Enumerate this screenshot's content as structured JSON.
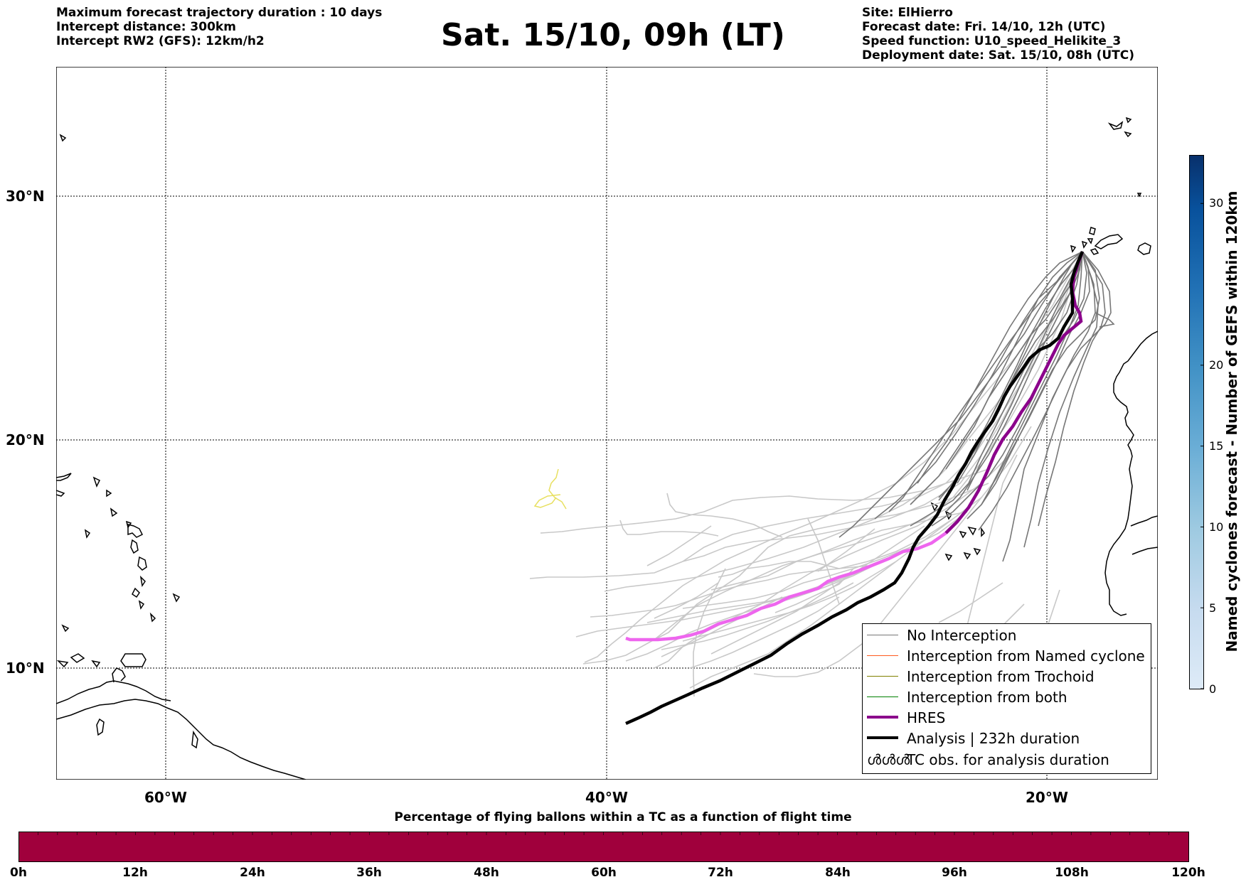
{
  "header": {
    "left_lines": [
      "Maximum forecast trajectory duration : 10 days",
      "Intercept distance: 300km",
      "Intercept RW2 (GFS):  12km/h2"
    ],
    "title": "Sat. 15/10, 09h (LT)",
    "right_lines": [
      "Site: ElHierro",
      "Forecast date: Fri. 14/10, 12h (UTC)",
      "Speed function: U10_speed_Helikite_3",
      "Deployment date: Sat. 15/10, 08h (UTC)"
    ]
  },
  "map": {
    "lat_labels": [
      "30°N",
      "20°N",
      "10°N"
    ],
    "lon_labels": [
      "60°W",
      "40°W",
      "20°W"
    ],
    "colors": {
      "no_interception": "#777777",
      "no_interception_light": "#c8c8c8",
      "named_cyclone": "#ff5a1e",
      "trochoid": "#808000",
      "both": "#008000",
      "hres": "#8b008b",
      "hres_light": "#ee66ee",
      "analysis": "#000000",
      "coast": "#000000",
      "yellow_track": "#e8e060"
    }
  },
  "legend": {
    "items": [
      {
        "label": "No Interception",
        "color": "#777777",
        "width": 1.5
      },
      {
        "label": "Interception from Named cyclone",
        "color": "#ff5a1e",
        "width": 1.5
      },
      {
        "label": "Interception from Trochoid",
        "color": "#808000",
        "width": 1.5
      },
      {
        "label": "Interception from both",
        "color": "#008000",
        "width": 1.5
      },
      {
        "label": "HRES",
        "color": "#8b008b",
        "width": 4
      },
      {
        "label": "Analysis | 232h duration",
        "color": "#000000",
        "width": 4
      }
    ],
    "tc_symbol": "ൾൾൾ",
    "tc_label": "TC obs. for analysis duration"
  },
  "colorbar": {
    "label": "Named cyclones forecast - Number of GEFS within 120km",
    "ticks": [
      "0",
      "5",
      "10",
      "15",
      "20",
      "30"
    ],
    "tick_values": [
      0,
      5,
      10,
      15,
      20,
      30
    ],
    "max": 33
  },
  "flight_bar": {
    "title": "Percentage of flying ballons within a TC as a function of flight time",
    "ticks": [
      "0h",
      "12h",
      "24h",
      "36h",
      "48h",
      "60h",
      "72h",
      "84h",
      "96h",
      "108h",
      "120h"
    ],
    "color": "#a0003c"
  }
}
